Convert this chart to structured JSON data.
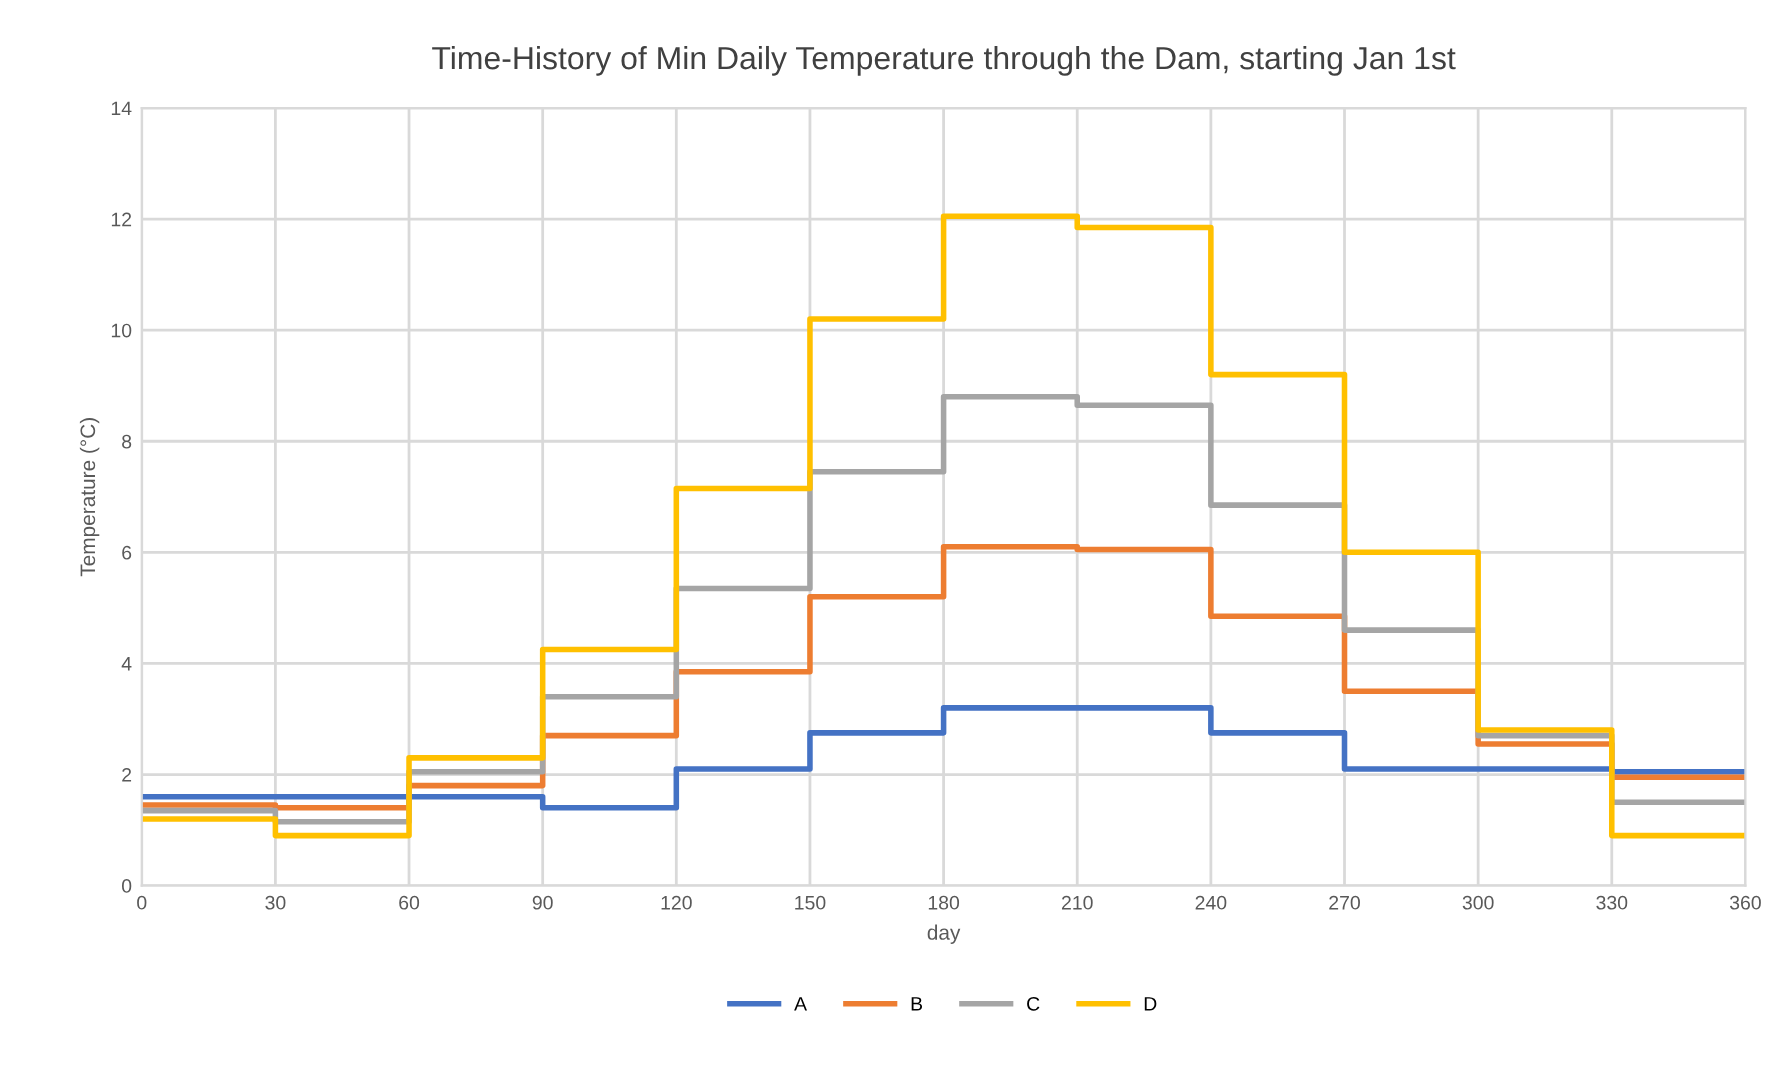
{
  "chart_data": {
    "type": "step",
    "title": "Time-History of Min Daily Temperature through the Dam, starting Jan 1st",
    "xlabel": "day",
    "ylabel": "Temperature (°C)",
    "x": [
      0,
      30,
      60,
      90,
      120,
      150,
      180,
      210,
      240,
      270,
      300,
      330,
      360
    ],
    "series": [
      {
        "name": "A",
        "color": "#4472c4",
        "values": [
          1.6,
          1.6,
          1.6,
          1.4,
          2.1,
          2.75,
          3.2,
          3.2,
          2.75,
          2.1,
          2.1,
          2.05,
          2.05
        ]
      },
      {
        "name": "B",
        "color": "#ed7d31",
        "values": [
          1.45,
          1.4,
          1.8,
          2.7,
          3.85,
          5.2,
          6.1,
          6.05,
          4.85,
          3.5,
          2.55,
          1.95,
          1.95
        ]
      },
      {
        "name": "C",
        "color": "#a5a5a5",
        "values": [
          1.35,
          1.15,
          2.05,
          3.4,
          5.35,
          7.45,
          8.8,
          8.65,
          6.85,
          4.6,
          2.7,
          1.5,
          1.5
        ]
      },
      {
        "name": "D",
        "color": "#ffc000",
        "values": [
          1.2,
          0.9,
          2.3,
          4.25,
          7.15,
          10.2,
          12.05,
          11.85,
          9.2,
          6.0,
          2.8,
          0.9,
          0.9
        ]
      }
    ],
    "xlim": [
      0,
      360
    ],
    "ylim": [
      0,
      14
    ],
    "xticks": [
      0,
      30,
      60,
      90,
      120,
      150,
      180,
      210,
      240,
      270,
      300,
      330,
      360
    ],
    "yticks": [
      0,
      2,
      4,
      6,
      8,
      10,
      12,
      14
    ],
    "grid": true,
    "legend": "bottom",
    "line_style": "solid"
  }
}
